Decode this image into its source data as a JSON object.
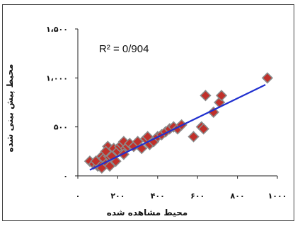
{
  "chart_data": {
    "type": "scatter",
    "xlabel": "محیط مشاهده شده",
    "ylabel": "محیط پیش بینی شده",
    "xlim": [
      0,
      1000
    ],
    "ylim": [
      0,
      1500
    ],
    "x_ticks": [
      0,
      200,
      400,
      600,
      800,
      1000
    ],
    "x_tick_labels": [
      "۰",
      "۲۰۰",
      "۴۰۰",
      "۶۰۰",
      "۸۰۰",
      "۱۰۰۰"
    ],
    "y_ticks": [
      0,
      500,
      1000,
      1500
    ],
    "y_tick_labels": [
      "۰",
      "۵۰۰",
      "۱،۰۰۰",
      "۱،۵۰۰"
    ],
    "annotation": "R² = 0/904",
    "grid": false,
    "marker_color": "#c0302a",
    "marker_edge_color": "#8a8a8a",
    "trendline_color": "#1f2fcf",
    "trendline": {
      "x": [
        60,
        940
      ],
      "y": [
        60,
        930
      ]
    },
    "series": [
      {
        "x": [
          60,
          80,
          100,
          110,
          120,
          130,
          140,
          150,
          155,
          160,
          170,
          180,
          185,
          190,
          200,
          210,
          220,
          230,
          240,
          250,
          260,
          280,
          300,
          320,
          340,
          350,
          360,
          380,
          400,
          420,
          440,
          460,
          480,
          500,
          520,
          580,
          620,
          630,
          640,
          680,
          710,
          720,
          950,
          120,
          140,
          90,
          170,
          230
        ],
        "y": [
          150,
          120,
          100,
          130,
          200,
          180,
          120,
          300,
          200,
          100,
          250,
          280,
          220,
          150,
          250,
          300,
          320,
          350,
          280,
          300,
          330,
          300,
          350,
          280,
          380,
          400,
          320,
          350,
          400,
          420,
          450,
          480,
          500,
          480,
          520,
          400,
          500,
          480,
          820,
          650,
          750,
          820,
          1000,
          80,
          250,
          150,
          200,
          220
        ]
      }
    ]
  }
}
